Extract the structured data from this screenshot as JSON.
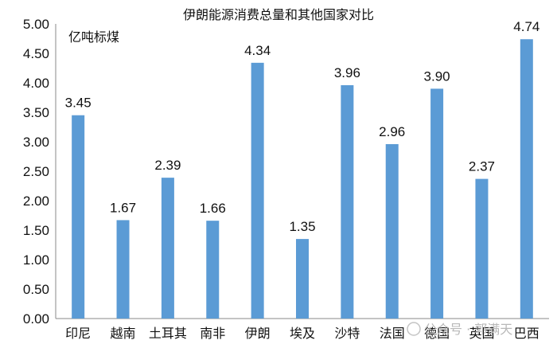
{
  "chart_data": {
    "type": "bar",
    "title": "伊朗能源消费总量和其他国家对比",
    "unit_label": "亿吨标煤",
    "categories": [
      "印尼",
      "越南",
      "土耳其",
      "南非",
      "伊朗",
      "埃及",
      "沙特",
      "法国",
      "德国",
      "英国",
      "巴西"
    ],
    "values": [
      3.45,
      1.67,
      2.39,
      1.66,
      4.34,
      1.35,
      3.96,
      2.96,
      3.9,
      2.37,
      4.74
    ],
    "value_labels": [
      "3.45",
      "1.67",
      "2.39",
      "1.66",
      "4.34",
      "1.35",
      "3.96",
      "2.96",
      "3.90",
      "2.37",
      "4.74"
    ],
    "ylim": [
      0,
      5
    ],
    "yticks": [
      "0.00",
      "0.50",
      "1.00",
      "1.50",
      "2.00",
      "2.50",
      "3.00",
      "3.50",
      "4.00",
      "4.50",
      "5.00"
    ],
    "bar_color": "#5b9bd5",
    "grid": false,
    "legend": "none"
  },
  "watermark": {
    "text": "公众号 · 郭满天"
  }
}
